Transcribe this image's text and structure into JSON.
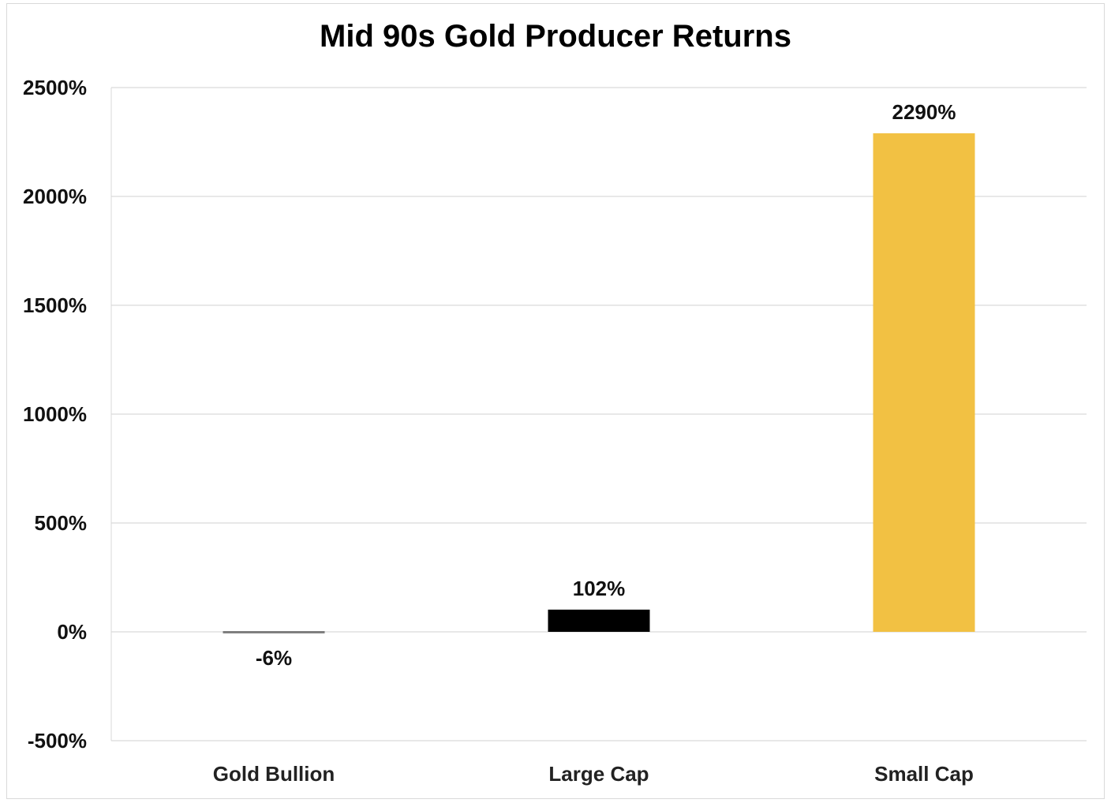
{
  "chart_data": {
    "type": "bar",
    "title": "Mid 90s Gold Producer Returns",
    "categories": [
      "Gold Bullion",
      "Large Cap",
      "Small Cap"
    ],
    "values": [
      -6,
      102,
      2290
    ],
    "data_labels": [
      "-6%",
      "102%",
      "2290%"
    ],
    "colors": [
      "#7f7f7f",
      "#000000",
      "#f2c143"
    ],
    "ylim": [
      -500,
      2500
    ],
    "yticks": [
      -500,
      0,
      500,
      1000,
      1500,
      2000,
      2500
    ],
    "ytick_labels": [
      "-500%",
      "0%",
      "500%",
      "1000%",
      "1500%",
      "2000%",
      "2500%"
    ],
    "xlabel": "",
    "ylabel": "",
    "grid": true,
    "legend": "none"
  }
}
